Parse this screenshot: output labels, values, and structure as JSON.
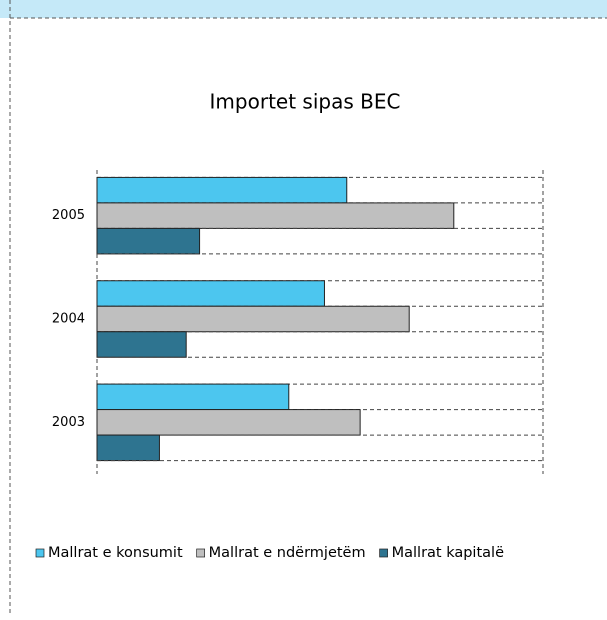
{
  "chart_data": {
    "type": "bar",
    "orientation": "horizontal",
    "title": "Importet sipas BEC",
    "categories": [
      "2003",
      "2004",
      "2005"
    ],
    "series": [
      {
        "name": "Mallrat e konsumit",
        "color": "#4cc6ef",
        "values": [
          43,
          51,
          56
        ]
      },
      {
        "name": "Mallrat e ndërmjetëm",
        "color": "#bfbfbf",
        "values": [
          59,
          70,
          80
        ]
      },
      {
        "name": "Mallrat kapitalë",
        "color": "#2e7490",
        "values": [
          14,
          20,
          23
        ]
      }
    ],
    "xlim": [
      0,
      100
    ],
    "legend": "bottom"
  }
}
